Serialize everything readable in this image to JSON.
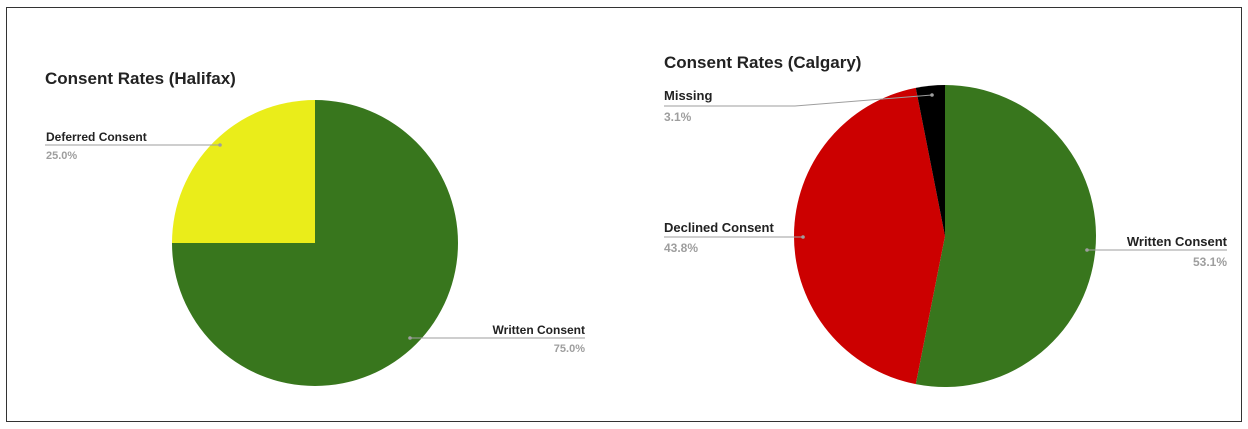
{
  "chart_data": [
    {
      "type": "pie",
      "title": "Consent Rates (Halifax)",
      "slices": [
        {
          "label": "Written Consent",
          "value": 75.0,
          "pct_label": "75.0%",
          "color": "#38761d"
        },
        {
          "label": "Deferred Consent",
          "value": 25.0,
          "pct_label": "25.0%",
          "color": "#eaed1a"
        }
      ]
    },
    {
      "type": "pie",
      "title": "Consent Rates (Calgary)",
      "slices": [
        {
          "label": "Written Consent",
          "value": 53.1,
          "pct_label": "53.1%",
          "color": "#38761d"
        },
        {
          "label": "Declined Consent",
          "value": 43.8,
          "pct_label": "43.8%",
          "color": "#cc0000"
        },
        {
          "label": "Missing",
          "value": 3.1,
          "pct_label": "3.1%",
          "color": "#000000"
        }
      ]
    }
  ]
}
